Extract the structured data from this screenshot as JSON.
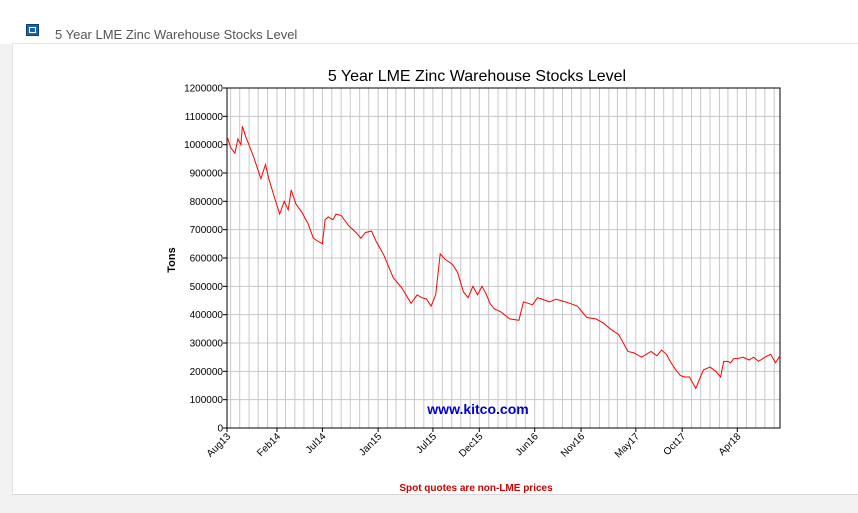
{
  "header": {
    "title": "5 Year LME Zinc Warehouse Stocks Level",
    "icon": "chart-link-icon"
  },
  "footer": {
    "note": "Spot quotes are non-LME prices"
  },
  "chart_data": {
    "type": "line",
    "title": "5 Year LME Zinc Warehouse Stocks Level",
    "xlabel": "",
    "ylabel": "Tons",
    "watermark": "www.kitco.com",
    "ylim": [
      0,
      1200000
    ],
    "yticks": [
      0,
      100000,
      200000,
      300000,
      400000,
      500000,
      600000,
      700000,
      800000,
      900000,
      1000000,
      1100000,
      1200000
    ],
    "ytick_labels": [
      "0",
      "100000",
      "200000",
      "300000",
      "400000",
      "500000",
      "600000",
      "700000",
      "800000",
      "900000",
      "1000000",
      "1100000",
      "1200000"
    ],
    "xlim": [
      "2013-08-20",
      "2018-08-20"
    ],
    "xticks": [
      "2013-08-01",
      "2014-02-01",
      "2014-07-01",
      "2015-01-01",
      "2015-07-01",
      "2015-12-01",
      "2016-06-01",
      "2016-11-01",
      "2017-05-01",
      "2017-10-01",
      "2018-04-01"
    ],
    "xtick_labels": [
      "Aug13",
      "Feb14",
      "Jul14",
      "Jan15",
      "Jul15",
      "Dec15",
      "Jun16",
      "Nov16",
      "May17",
      "Oct17",
      "Apr18"
    ],
    "grid": true,
    "series_color": "#ff0000",
    "series": [
      {
        "x": [
          "2013-08-20",
          "2013-09-01",
          "2013-09-15",
          "2013-09-25",
          "2013-10-05",
          "2013-10-10",
          "2013-10-20",
          "2013-11-15",
          "2013-12-10",
          "2013-12-25",
          "2014-01-05",
          "2014-01-25",
          "2014-02-10",
          "2014-02-25",
          "2014-03-10",
          "2014-03-20",
          "2014-04-05",
          "2014-04-25",
          "2014-05-15",
          "2014-06-01",
          "2014-06-15",
          "2014-07-01",
          "2014-07-10",
          "2014-07-20",
          "2014-08-05",
          "2014-08-15",
          "2014-09-01",
          "2014-09-25",
          "2014-10-20",
          "2014-11-05",
          "2014-11-20",
          "2014-12-10",
          "2014-12-25",
          "2015-01-20",
          "2015-02-20",
          "2015-03-20",
          "2015-04-20",
          "2015-05-10",
          "2015-05-25",
          "2015-06-10",
          "2015-06-25",
          "2015-07-10",
          "2015-07-25",
          "2015-08-10",
          "2015-08-25",
          "2015-09-05",
          "2015-09-20",
          "2015-10-10",
          "2015-10-25",
          "2015-11-10",
          "2015-11-25",
          "2015-12-10",
          "2015-12-25",
          "2016-01-05",
          "2016-01-20",
          "2016-02-10",
          "2016-03-10",
          "2016-04-10",
          "2016-04-25",
          "2016-05-10",
          "2016-05-25",
          "2016-06-10",
          "2016-06-25",
          "2016-07-20",
          "2016-08-10",
          "2016-08-25",
          "2016-09-10",
          "2016-09-25",
          "2016-10-20",
          "2016-11-20",
          "2016-12-20",
          "2017-01-15",
          "2017-02-05",
          "2017-03-05",
          "2017-04-05",
          "2017-04-25",
          "2017-05-20",
          "2017-06-20",
          "2017-07-10",
          "2017-07-25",
          "2017-08-10",
          "2017-08-25",
          "2017-09-10",
          "2017-09-25",
          "2017-10-10",
          "2017-10-25",
          "2017-11-15",
          "2017-12-10",
          "2018-01-01",
          "2018-01-20",
          "2018-02-05",
          "2018-02-15",
          "2018-03-01",
          "2018-03-10",
          "2018-03-20",
          "2018-04-01",
          "2018-04-20",
          "2018-05-10",
          "2018-05-25",
          "2018-06-10",
          "2018-07-01",
          "2018-07-20",
          "2018-08-05",
          "2018-08-20"
        ],
        "y": [
          1030000,
          990000,
          970000,
          1020000,
          1000000,
          1065000,
          1030000,
          960000,
          880000,
          930000,
          880000,
          810000,
          755000,
          800000,
          770000,
          840000,
          790000,
          760000,
          720000,
          670000,
          660000,
          650000,
          735000,
          745000,
          735000,
          755000,
          750000,
          715000,
          690000,
          670000,
          690000,
          695000,
          660000,
          610000,
          530000,
          495000,
          440000,
          470000,
          460000,
          455000,
          430000,
          470000,
          615000,
          595000,
          585000,
          575000,
          550000,
          480000,
          460000,
          500000,
          470000,
          500000,
          470000,
          440000,
          420000,
          410000,
          385000,
          380000,
          445000,
          440000,
          435000,
          460000,
          455000,
          445000,
          455000,
          450000,
          445000,
          440000,
          430000,
          390000,
          385000,
          370000,
          350000,
          330000,
          270000,
          265000,
          250000,
          270000,
          255000,
          275000,
          260000,
          230000,
          205000,
          185000,
          180000,
          180000,
          140000,
          205000,
          215000,
          200000,
          180000,
          235000,
          235000,
          230000,
          245000,
          245000,
          250000,
          240000,
          250000,
          235000,
          250000,
          260000,
          230000,
          255000
        ]
      }
    ]
  }
}
